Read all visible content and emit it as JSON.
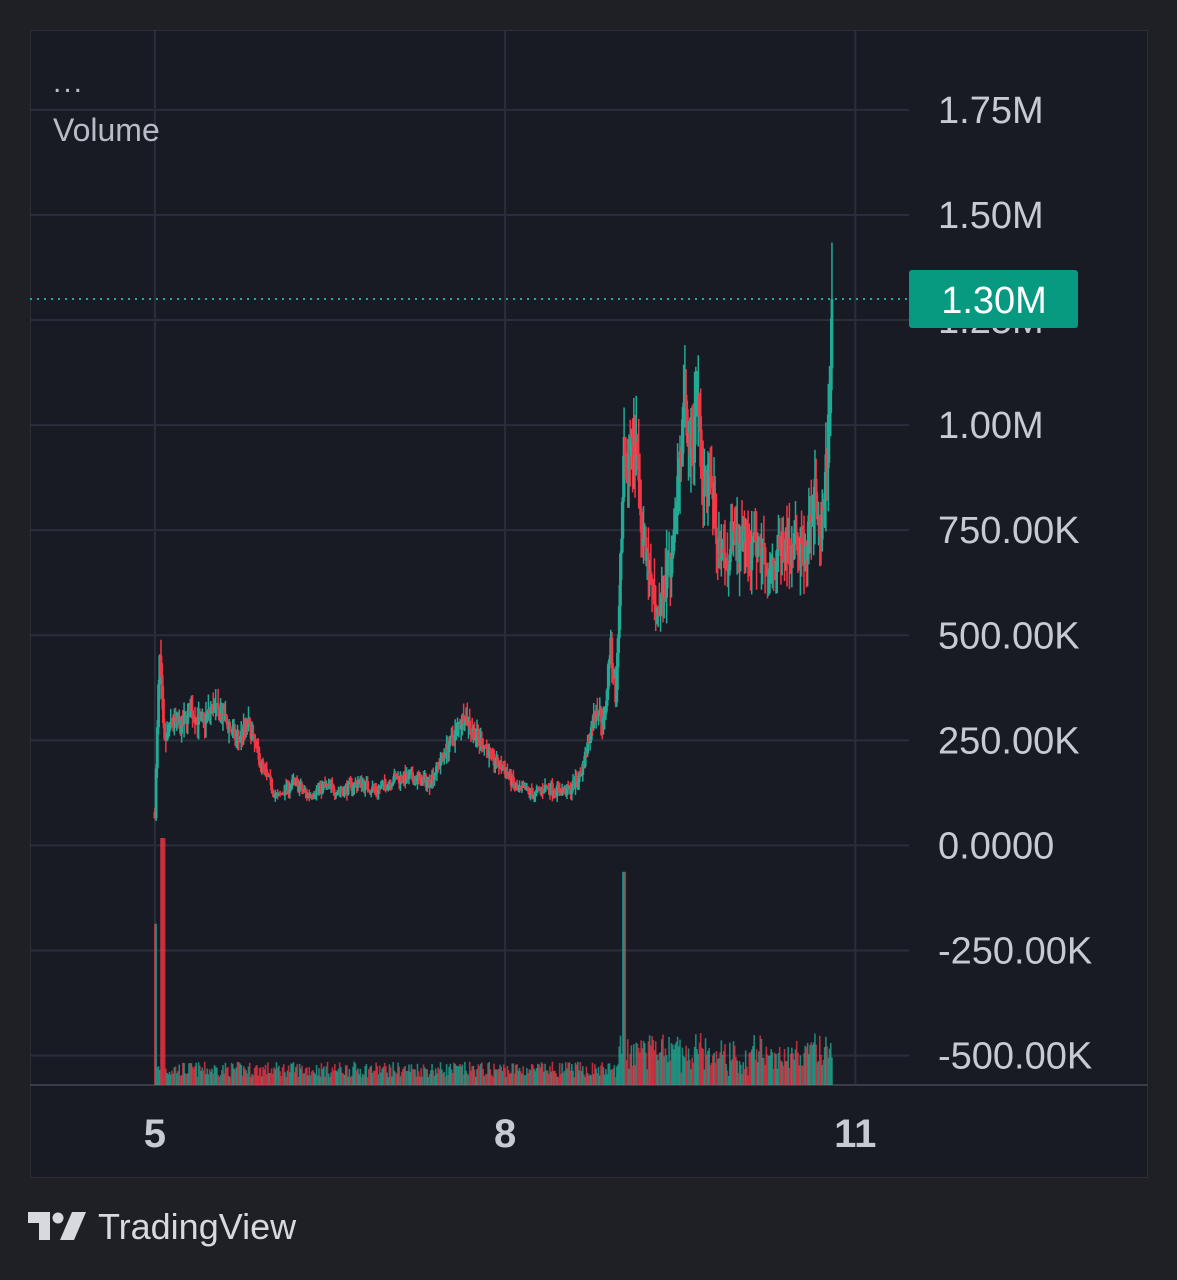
{
  "legend": {
    "more": "...",
    "title": "Volume"
  },
  "branding": {
    "name": "TradingView",
    "logo_icon": "tradingview-logo-icon"
  },
  "colors": {
    "background": "#181a24",
    "outer_background": "#1e2026",
    "grid": "#2b2e3a",
    "up": "#22ab94",
    "down": "#f23645",
    "label_bg": "#089981",
    "axis_text": "#c7cad1"
  },
  "chart_data": {
    "type": "candlestick",
    "title": "",
    "ylabel": "",
    "xlabel": "",
    "y_ticks": [
      "1.75M",
      "1.50M",
      "1.25M",
      "1.00M",
      "750.00K",
      "500.00K",
      "250.00K",
      "0.0000",
      "-250.00K",
      "-500.00K"
    ],
    "y_tick_values": [
      1750000,
      1500000,
      1250000,
      1000000,
      750000,
      500000,
      250000,
      0,
      -250000,
      -500000
    ],
    "x_ticks": [
      "5",
      "8",
      "11"
    ],
    "x_tick_values": [
      5,
      8,
      11
    ],
    "ylim": [
      -570000,
      1940000
    ],
    "xlim": [
      3.93,
      11.46
    ],
    "last_price": 1300000,
    "last_price_label": "1.30M",
    "grid": true,
    "volume_panel": {
      "series_name": "Volume",
      "overlay": "bottom"
    },
    "approx_close_path": {
      "x": [
        5.0,
        5.04,
        5.08,
        5.15,
        5.22,
        5.3,
        5.4,
        5.5,
        5.6,
        5.7,
        5.8,
        5.9,
        6.0,
        6.05,
        6.1,
        6.2,
        6.3,
        6.45,
        6.6,
        6.75,
        6.9,
        7.05,
        7.2,
        7.35,
        7.5,
        7.65,
        7.75,
        7.82,
        7.9,
        8.0,
        8.1,
        8.18,
        8.25,
        8.35,
        8.45,
        8.55,
        8.65,
        8.7,
        8.78,
        8.85,
        8.9,
        8.95,
        9.02,
        9.08,
        9.12,
        9.18,
        9.25,
        9.3,
        9.35,
        9.42,
        9.5,
        9.55,
        9.6,
        9.65,
        9.7,
        9.75,
        9.8,
        9.85,
        9.9,
        9.95,
        10.0,
        10.05,
        10.1,
        10.15,
        10.2,
        10.28,
        10.35,
        10.42,
        10.5,
        10.58,
        10.65,
        10.7,
        10.75,
        10.78,
        10.8
      ],
      "y": [
        80000,
        450000,
        240000,
        300000,
        280000,
        320000,
        290000,
        330000,
        300000,
        250000,
        290000,
        200000,
        140000,
        110000,
        130000,
        150000,
        120000,
        140000,
        130000,
        150000,
        130000,
        160000,
        160000,
        150000,
        230000,
        310000,
        260000,
        240000,
        200000,
        180000,
        130000,
        130000,
        120000,
        140000,
        130000,
        130000,
        170000,
        230000,
        330000,
        290000,
        480000,
        350000,
        940000,
        960000,
        950000,
        720000,
        620000,
        560000,
        600000,
        680000,
        930000,
        1050000,
        900000,
        1080000,
        820000,
        900000,
        770000,
        680000,
        650000,
        760000,
        700000,
        740000,
        680000,
        720000,
        700000,
        670000,
        710000,
        700000,
        720000,
        690000,
        870000,
        690000,
        900000,
        1050000,
        1300000
      ]
    },
    "volume_spikes": [
      {
        "x": 5.0,
        "volume_relative": 0.62
      },
      {
        "x": 5.07,
        "volume_relative": 0.95
      },
      {
        "x": 9.02,
        "volume_relative": 0.82
      }
    ]
  }
}
